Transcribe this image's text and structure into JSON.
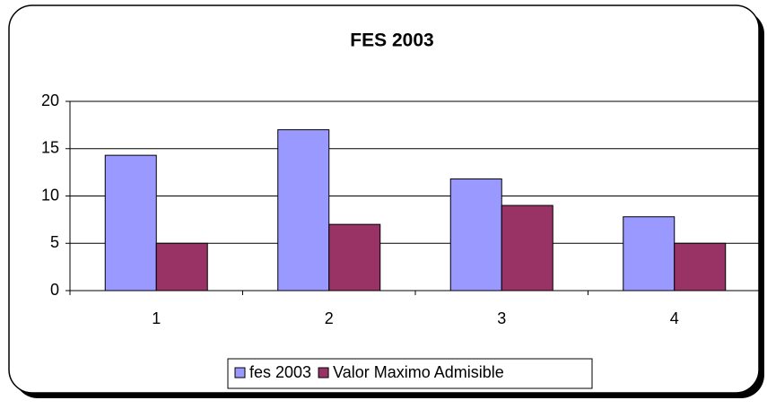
{
  "chart_data": {
    "type": "bar",
    "title": "FES 2003",
    "categories": [
      "1",
      "2",
      "3",
      "4"
    ],
    "series": [
      {
        "name": "fes 2003",
        "color": "#9999ff",
        "values": [
          14.3,
          17,
          11.8,
          7.8
        ]
      },
      {
        "name": "Valor Maximo Admisible",
        "color": "#993366",
        "values": [
          5,
          7,
          9,
          5
        ]
      }
    ],
    "ylim": [
      0,
      20
    ],
    "yticks": [
      0,
      5,
      10,
      15,
      20
    ],
    "grid": true,
    "legend": "bottom"
  }
}
